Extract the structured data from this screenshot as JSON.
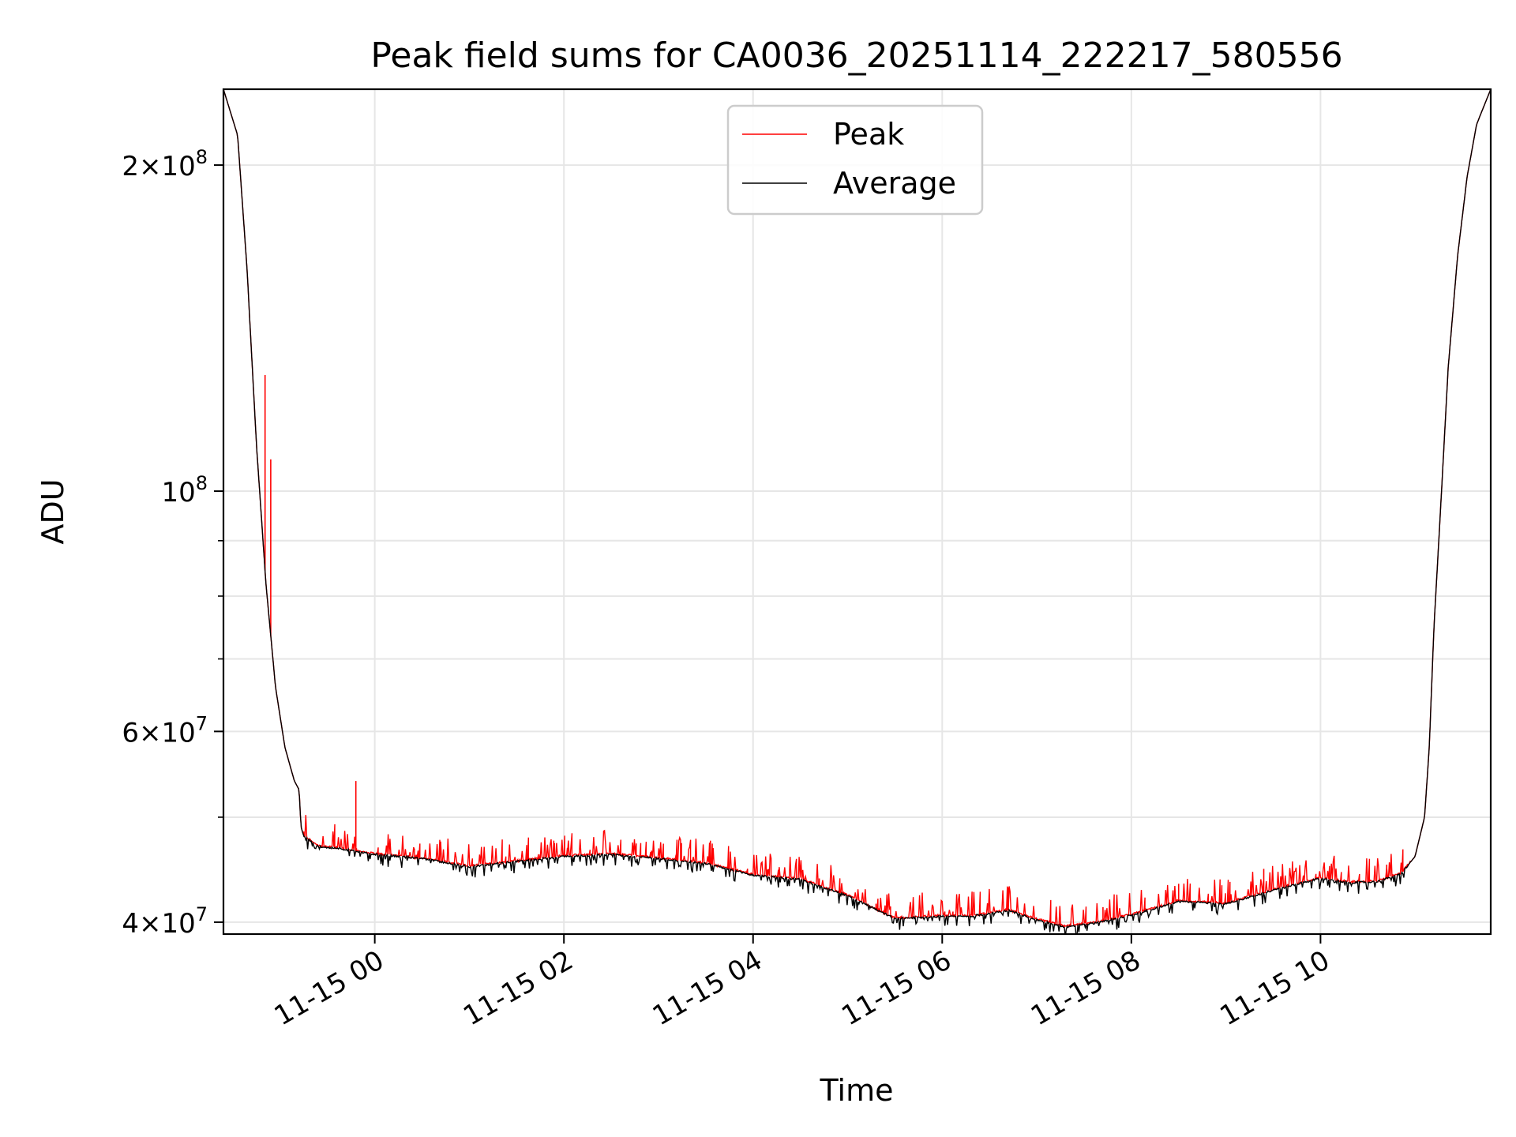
{
  "chart_data": {
    "type": "line",
    "title": "Peak field sums for CA0036_20251114_222217_580556",
    "xlabel": "Time",
    "ylabel": "ADU",
    "x_unit": "hours since 2025-11-15 00:00 (local)",
    "xlim": [
      -1.6,
      11.8
    ],
    "ylim": [
      39000000,
      235000000
    ],
    "yscale": "log",
    "grid": true,
    "legend_position": "top-center",
    "x_ticks": [
      {
        "value": 0,
        "label": "11-15 00"
      },
      {
        "value": 2,
        "label": "11-15 02"
      },
      {
        "value": 4,
        "label": "11-15 04"
      },
      {
        "value": 6,
        "label": "11-15 06"
      },
      {
        "value": 8,
        "label": "11-15 08"
      },
      {
        "value": 10,
        "label": "11-15 10"
      }
    ],
    "y_ticks_major": [
      {
        "value": 40000000,
        "base": "4",
        "exp": "7"
      },
      {
        "value": 60000000,
        "base": "6",
        "exp": "7"
      },
      {
        "value": 100000000,
        "base": "",
        "exp": "8"
      },
      {
        "value": 200000000,
        "base": "2",
        "exp": "8"
      }
    ],
    "y_ticks_minor": [
      50000000,
      70000000,
      80000000,
      90000000
    ],
    "series": [
      {
        "name": "Peak",
        "color": "#ff0000",
        "base_x": [
          -1.6,
          -1.45,
          -1.35,
          -1.25,
          -1.15,
          -1.05,
          -0.95,
          -0.85,
          -0.8,
          -0.78,
          -0.75,
          -0.6,
          -0.4,
          -0.2,
          0,
          0.5,
          1.0,
          1.5,
          2.0,
          2.5,
          3.0,
          3.5,
          4.0,
          4.5,
          5.0,
          5.5,
          6.0,
          6.3,
          6.7,
          7.0,
          7.3,
          7.6,
          8.0,
          8.5,
          9.0,
          9.5,
          10.0,
          10.3,
          10.6,
          10.85,
          11.0,
          11.1,
          11.15,
          11.2,
          11.28,
          11.35,
          11.45,
          11.55,
          11.65,
          11.8
        ],
        "base_y": [
          235000000,
          213000000,
          160000000,
          110000000,
          82000000,
          66000000,
          58000000,
          54000000,
          53000000,
          49000000,
          48000000,
          47000000,
          46800000,
          46500000,
          46200000,
          45800000,
          45000000,
          45500000,
          46000000,
          46200000,
          45800000,
          45300000,
          44200000,
          43800000,
          42300000,
          40300000,
          40500000,
          40500000,
          41000000,
          40200000,
          39600000,
          39900000,
          40600000,
          41800000,
          41600000,
          42800000,
          43900000,
          43500000,
          43600000,
          44300000,
          46000000,
          50000000,
          58000000,
          75000000,
          100000000,
          130000000,
          165000000,
          195000000,
          218000000,
          235000000
        ],
        "spikes": [
          {
            "x": -1.16,
            "y": 128000000
          },
          {
            "x": -1.1,
            "y": 107000000
          },
          {
            "x": -0.2,
            "y": 54000000
          },
          {
            "x": -0.75,
            "y": 48500000
          },
          {
            "x": 1.9,
            "y": 47300000
          },
          {
            "x": 4.7,
            "y": 43900000
          },
          {
            "x": 5.3,
            "y": 41600000
          },
          {
            "x": 7.7,
            "y": 41300000
          },
          {
            "x": 8.5,
            "y": 43400000
          },
          {
            "x": 9.4,
            "y": 44800000
          },
          {
            "x": 10.7,
            "y": 45200000
          }
        ]
      },
      {
        "name": "Average",
        "color": "#000000",
        "base_x": [
          -1.6,
          -1.45,
          -1.35,
          -1.25,
          -1.15,
          -1.05,
          -0.95,
          -0.85,
          -0.8,
          -0.78,
          -0.75,
          -0.6,
          -0.4,
          -0.2,
          0,
          0.5,
          1.0,
          1.5,
          2.0,
          2.5,
          3.0,
          3.5,
          4.0,
          4.5,
          5.0,
          5.5,
          6.0,
          6.3,
          6.7,
          7.0,
          7.3,
          7.6,
          8.0,
          8.5,
          9.0,
          9.5,
          10.0,
          10.3,
          10.6,
          10.85,
          11.0,
          11.1,
          11.15,
          11.2,
          11.28,
          11.35,
          11.45,
          11.55,
          11.65,
          11.8
        ],
        "base_y": [
          235000000,
          213000000,
          160000000,
          110000000,
          82000000,
          66000000,
          58000000,
          54000000,
          53000000,
          49000000,
          48000000,
          47000000,
          46800000,
          46500000,
          46200000,
          45800000,
          45000000,
          45500000,
          46000000,
          46200000,
          45800000,
          45300000,
          44200000,
          43800000,
          42300000,
          40300000,
          40500000,
          40500000,
          41000000,
          40200000,
          39600000,
          39900000,
          40600000,
          41800000,
          41600000,
          42800000,
          43900000,
          43500000,
          43600000,
          44300000,
          46000000,
          50000000,
          58000000,
          75000000,
          100000000,
          130000000,
          165000000,
          195000000,
          218000000,
          235000000
        ]
      }
    ]
  }
}
